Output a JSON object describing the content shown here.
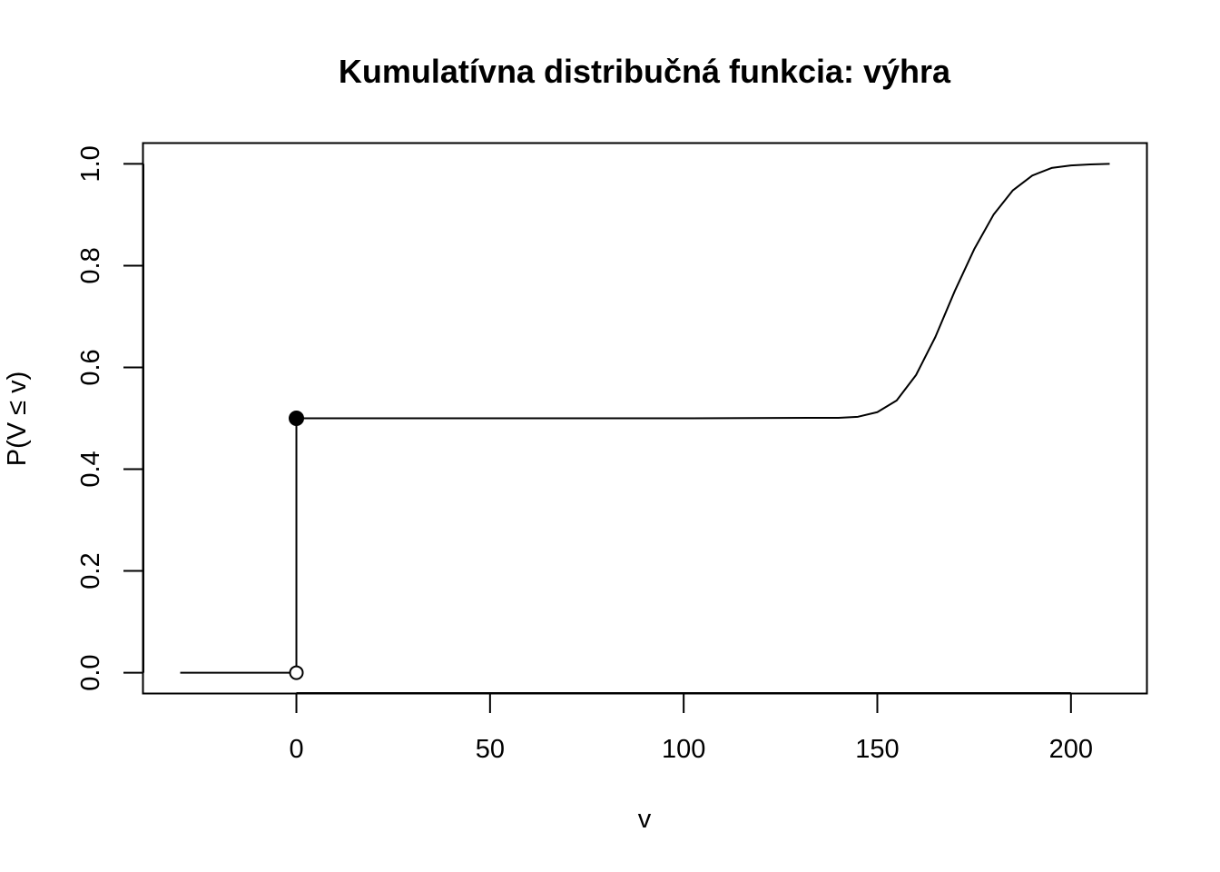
{
  "chart_data": {
    "type": "line",
    "title": "Kumulatívna distribučná funkcia: výhra",
    "xlabel": "v",
    "ylabel": "P(V ≤ v)",
    "xlim": [
      -39.5,
      219.5
    ],
    "ylim": [
      -0.04,
      1.04
    ],
    "x_ticks": [
      0,
      50,
      100,
      150,
      200
    ],
    "x_tick_labels": [
      "0",
      "50",
      "100",
      "150",
      "200"
    ],
    "y_ticks": [
      0,
      0.2,
      0.4,
      0.6,
      0.8,
      1.0
    ],
    "y_tick_labels": [
      "0.0",
      "0.2",
      "0.4",
      "0.6",
      "0.8",
      "1.0"
    ],
    "grid": false,
    "colors": {
      "line": "#000000",
      "background": "#ffffff"
    },
    "segments": [
      {
        "name": "",
        "x": [
          -30,
          0
        ],
        "y": [
          0,
          0
        ]
      },
      {
        "name": "",
        "x": [
          0,
          0
        ],
        "y": [
          0,
          0.5
        ]
      },
      {
        "name": "",
        "x": [
          0,
          100,
          140,
          145,
          150,
          155,
          160,
          165,
          170,
          175,
          180,
          185,
          190,
          195,
          200,
          205,
          210
        ],
        "y": [
          0.5,
          0.5,
          0.501,
          0.503,
          0.512,
          0.535,
          0.585,
          0.66,
          0.75,
          0.832,
          0.9,
          0.948,
          0.977,
          0.992,
          0.997,
          0.999,
          1.0
        ]
      }
    ],
    "points": [
      {
        "x": 0,
        "y": 0.5,
        "filled": true
      },
      {
        "x": 0,
        "y": 0,
        "filled": false
      }
    ]
  }
}
